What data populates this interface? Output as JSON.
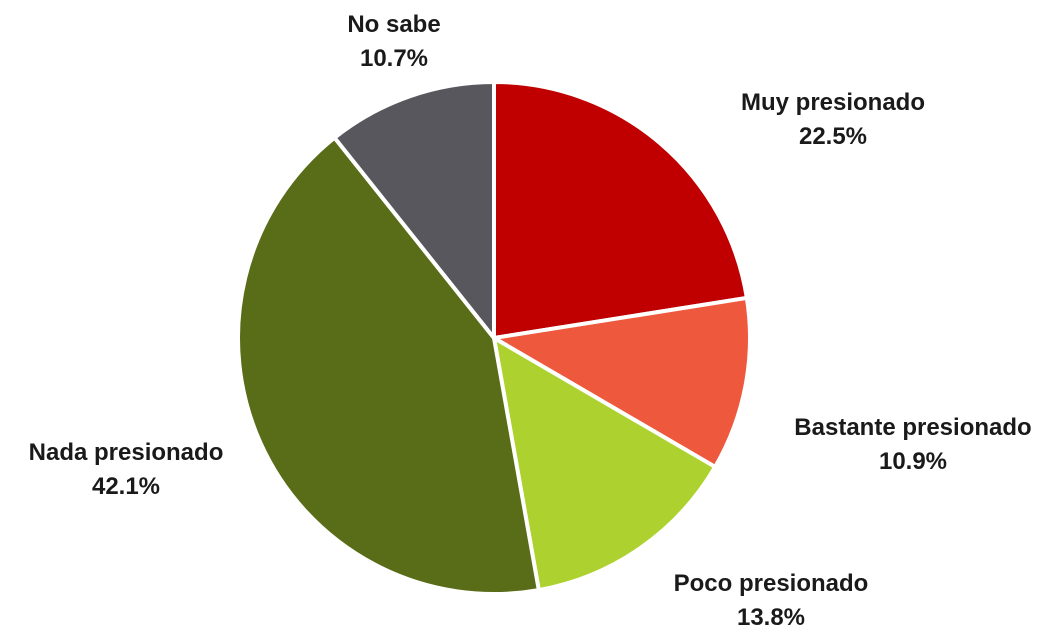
{
  "chart_data": {
    "type": "pie",
    "title": "",
    "slices": [
      {
        "label": "Muy presionado",
        "value": 22.5,
        "display": "22.5%",
        "color": "#C00000"
      },
      {
        "label": "Bastante presionado",
        "value": 10.9,
        "display": "10.9%",
        "color": "#EE583C"
      },
      {
        "label": "Poco presionado",
        "value": 13.8,
        "display": "13.8%",
        "color": "#ADD230"
      },
      {
        "label": "Nada presionado",
        "value": 42.1,
        "display": "42.1%",
        "color": "#596C17"
      },
      {
        "label": "No sabe",
        "value": 10.7,
        "display": "10.7%",
        "color": "#58575D"
      }
    ],
    "start": "12 o'clock",
    "direction": "clockwise",
    "legend": "none",
    "labels": "outside, category name and percentage"
  }
}
